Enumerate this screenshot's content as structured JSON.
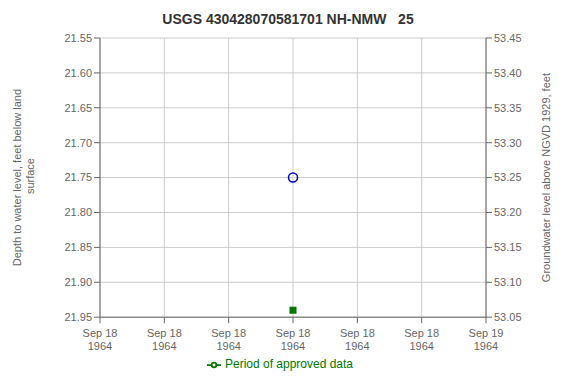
{
  "chart_data": {
    "type": "scatter",
    "title": "USGS 430428070581701 NH-NMW   25",
    "ylabel": "Depth to water level, feet below land\n surface",
    "y2label": "Groundwater level above NGVD 1929, feet",
    "categories": [
      "Sep 18\n1964",
      "Sep 18\n1964",
      "Sep 18\n1964",
      "Sep 18\n1964",
      "Sep 18\n1964",
      "Sep 18\n1964",
      "Sep 19\n1964"
    ],
    "series": [
      {
        "type": "scatter",
        "marker": "open_circle",
        "color": "#0000cc",
        "values": [
          null,
          null,
          null,
          21.75,
          null,
          null,
          null
        ]
      },
      {
        "type": "scatter",
        "marker": "square",
        "color": "#007700",
        "values": [
          null,
          null,
          null,
          21.94,
          null,
          null,
          null
        ]
      },
      {
        "name": "Period of approved data",
        "type": "line",
        "line_style": "solid",
        "color": "#007700",
        "values": [
          null,
          null,
          null,
          null,
          null,
          null,
          null
        ]
      }
    ],
    "ylim": [
      21.95,
      21.55
    ],
    "yticks": [
      21.55,
      {
        "value": 21.6,
        "label": "21.60"
      },
      21.65,
      {
        "value": 21.7,
        "label": "21.70"
      },
      21.75,
      {
        "value": 21.8,
        "label": "21.80"
      },
      21.85,
      {
        "value": 21.9,
        "label": "21.90"
      },
      21.95
    ],
    "y2lim": [
      53.05,
      53.45
    ],
    "y2ticks": [
      53.45,
      {
        "value": 53.4,
        "label": "53.40"
      },
      53.35,
      {
        "value": 53.3,
        "label": "53.30"
      },
      53.25,
      {
        "value": 53.2,
        "label": "53.20"
      },
      53.15,
      {
        "value": 53.1,
        "label": "53.10"
      },
      53.05
    ],
    "grid": true,
    "legend": "bottom"
  }
}
